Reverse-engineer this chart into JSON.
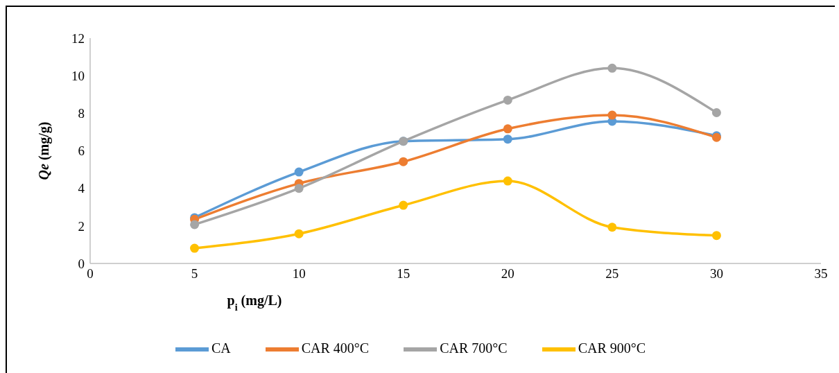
{
  "chart_data": {
    "type": "line",
    "xlabel": "p$_{i}$ (mg/L)",
    "ylabel": "Qe (mg/g)",
    "x": [
      5,
      10,
      15,
      20,
      25,
      30
    ],
    "series": [
      {
        "name": "CA",
        "color": "#5b9bd5",
        "values": [
          2.44,
          4.87,
          6.51,
          6.62,
          7.57,
          6.8
        ]
      },
      {
        "name": "CAR 400°C",
        "color": "#ed7d31",
        "values": [
          2.35,
          4.26,
          5.42,
          7.17,
          7.9,
          6.71
        ]
      },
      {
        "name": "CAR 700°C",
        "color": "#a5a5a5",
        "values": [
          2.07,
          4.0,
          6.51,
          8.7,
          10.4,
          8.03
        ]
      },
      {
        "name": "CAR 900°C",
        "color": "#ffc000",
        "values": [
          0.81,
          1.58,
          3.1,
          4.39,
          1.93,
          1.49
        ]
      }
    ],
    "xlim": [
      0,
      35
    ],
    "xticks": [
      0,
      5,
      10,
      15,
      20,
      25,
      30,
      35
    ],
    "ylim": [
      0,
      12
    ],
    "yticks": [
      0,
      2,
      4,
      6,
      8,
      10,
      12
    ],
    "grid": false,
    "legend": "bottom",
    "marker": "circle",
    "line_style": "solid"
  }
}
